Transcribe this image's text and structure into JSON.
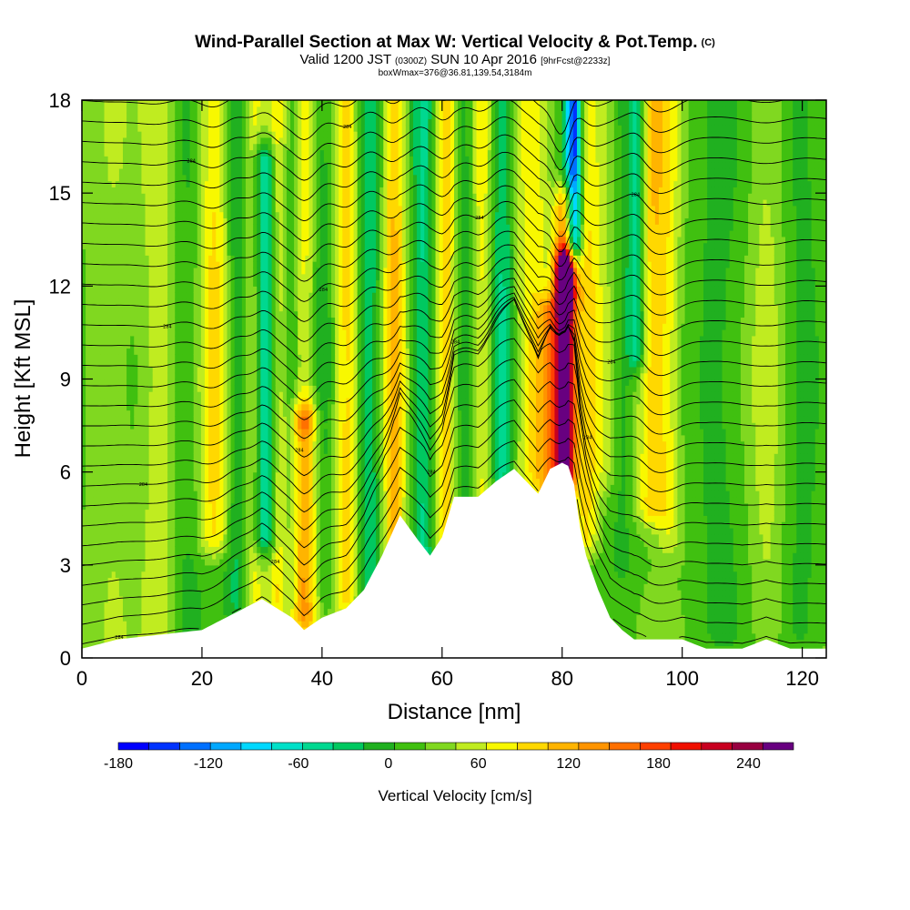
{
  "header": {
    "title": "Wind-Parallel Section at Max W: Vertical Velocity & Pot.Temp.",
    "copyright": "(C)",
    "valid_main": "Valid 1200 JST",
    "valid_utc": "(0300Z)",
    "valid_date": "SUN 10 Apr 2016",
    "valid_fcst": "[9hrFcst@2233z]",
    "boxwmax": "boxWmax=376@36.81,139.54,3184m"
  },
  "chart_data": {
    "type": "heatmap",
    "title": "Wind-Parallel Section at Max W: Vertical Velocity & Pot.Temp.",
    "xlabel": "Distance [nm]",
    "ylabel": "Height [Kft MSL]",
    "xlim": [
      0,
      124
    ],
    "ylim": [
      0,
      18
    ],
    "x_ticks": [
      0,
      20,
      40,
      60,
      80,
      100,
      120
    ],
    "y_ticks": [
      0,
      3,
      6,
      9,
      12,
      15,
      18
    ],
    "colorbar": {
      "label": "Vertical Velocity [cm/s]",
      "min": -180,
      "max": 270,
      "step": 20,
      "tick_values": [
        -180,
        -120,
        -60,
        0,
        60,
        120,
        180,
        240
      ],
      "tick_labels": [
        "-180",
        "-120",
        "-60",
        "0",
        "60",
        "120",
        "180",
        "240"
      ],
      "colors": [
        "#0000ff",
        "#0033ff",
        "#0070ff",
        "#00a8ff",
        "#00d8ff",
        "#00e0c8",
        "#00d890",
        "#00c860",
        "#20b020",
        "#40c010",
        "#80d820",
        "#c0ec20",
        "#f8f800",
        "#ffd800",
        "#ffb400",
        "#ff9400",
        "#ff7000",
        "#ff4000",
        "#f01000",
        "#c80020",
        "#980040",
        "#680080"
      ]
    },
    "terrain_profile": {
      "x": [
        0,
        6,
        20,
        24,
        27,
        30,
        35,
        37,
        40,
        44,
        47,
        50,
        53,
        56,
        58,
        60,
        62,
        66,
        69,
        72,
        76,
        78,
        80,
        81,
        82,
        83,
        84,
        86,
        88,
        90,
        92,
        96,
        100,
        104,
        110,
        114,
        118,
        120,
        124
      ],
      "y": [
        0.3,
        0.6,
        0.9,
        1.3,
        1.6,
        1.9,
        1.3,
        0.9,
        1.3,
        1.6,
        2.2,
        3.3,
        4.6,
        3.8,
        3.3,
        3.9,
        5.2,
        5.2,
        5.7,
        6.1,
        5.3,
        6.1,
        6.3,
        6.2,
        5.6,
        4.2,
        3.3,
        2.2,
        1.3,
        0.9,
        0.6,
        0.6,
        0.6,
        0.3,
        0.3,
        0.6,
        0.3,
        0.3,
        0.3
      ]
    },
    "vertical_velocity_features": [
      {
        "x": 5,
        "z0": 0,
        "z1": 18,
        "w": 20,
        "width": 4
      },
      {
        "x": 13,
        "z0": 0,
        "z1": 18,
        "w": 40,
        "width": 3
      },
      {
        "x": 17,
        "z0": 0,
        "z1": 18,
        "w": -20,
        "width": 3
      },
      {
        "x": 22,
        "z0": 4,
        "z1": 18,
        "w": 70,
        "width": 2.5
      },
      {
        "x": 26,
        "z0": 2,
        "z1": 18,
        "w": -40,
        "width": 2
      },
      {
        "x": 28.5,
        "z0": 2,
        "z1": 18,
        "w": 60,
        "width": 1.8
      },
      {
        "x": 30.5,
        "z0": 4,
        "z1": 16,
        "w": -100,
        "width": 2
      },
      {
        "x": 33,
        "z0": 2,
        "z1": 18,
        "w": 80,
        "width": 2
      },
      {
        "x": 34.5,
        "z0": 2,
        "z1": 18,
        "w": -60,
        "width": 1.8
      },
      {
        "x": 37,
        "z0": 1.5,
        "z1": 7.5,
        "w": 110,
        "width": 2.5
      },
      {
        "x": 37,
        "z0": 8,
        "z1": 18,
        "w": 60,
        "width": 2
      },
      {
        "x": 40,
        "z0": 2,
        "z1": 18,
        "w": -30,
        "width": 2
      },
      {
        "x": 44,
        "z0": 2,
        "z1": 18,
        "w": 70,
        "width": 2
      },
      {
        "x": 48,
        "z0": 2,
        "z1": 18,
        "w": -50,
        "width": 2
      },
      {
        "x": 52,
        "z0": 3,
        "z1": 18,
        "w": 90,
        "width": 2
      },
      {
        "x": 57,
        "z0": 3.5,
        "z1": 18,
        "w": -60,
        "width": 2
      },
      {
        "x": 60.5,
        "z0": 4,
        "z1": 18,
        "w": 80,
        "width": 2
      },
      {
        "x": 64,
        "z0": 5,
        "z1": 18,
        "w": -40,
        "width": 2
      },
      {
        "x": 66.5,
        "z0": 5,
        "z1": 18,
        "w": 60,
        "width": 2
      },
      {
        "x": 70,
        "z0": 6,
        "z1": 18,
        "w": -60,
        "width": 2
      },
      {
        "x": 75,
        "z0": 6,
        "z1": 18,
        "w": 60,
        "width": 3
      },
      {
        "x": 78,
        "z0": 5.5,
        "z1": 11,
        "w": 90,
        "width": 2
      },
      {
        "x": 80.5,
        "z0": 6,
        "z1": 12.5,
        "w": 250,
        "width": 1.6
      },
      {
        "x": 80.5,
        "z0": 12,
        "z1": 14.5,
        "w": 120,
        "width": 1.8
      },
      {
        "x": 82,
        "z0": 13.5,
        "z1": 18,
        "w": -180,
        "width": 1.4
      },
      {
        "x": 84,
        "z0": 4,
        "z1": 18,
        "w": 70,
        "width": 2
      },
      {
        "x": 87,
        "z0": 6,
        "z1": 18,
        "w": 30,
        "width": 2
      },
      {
        "x": 90,
        "z0": 3,
        "z1": 18,
        "w": -20,
        "width": 2
      },
      {
        "x": 92.5,
        "z0": 10,
        "z1": 18,
        "w": -80,
        "width": 1.5
      },
      {
        "x": 95,
        "z0": 5,
        "z1": 18,
        "w": 80,
        "width": 2.5
      },
      {
        "x": 98,
        "z0": 4,
        "z1": 18,
        "w": 40,
        "width": 2
      },
      {
        "x": 106,
        "z0": 1,
        "z1": 18,
        "w": -20,
        "width": 4
      },
      {
        "x": 114,
        "z0": 1,
        "z1": 18,
        "w": 30,
        "width": 3
      },
      {
        "x": 120,
        "z0": 1,
        "z1": 18,
        "w": -20,
        "width": 3
      }
    ],
    "potential_temperature": {
      "levels_count": 28,
      "base_height_kft": 0.2,
      "spacing_kft": 0.66,
      "contour_label_text": "284"
    },
    "annotation_x": 80.5
  }
}
